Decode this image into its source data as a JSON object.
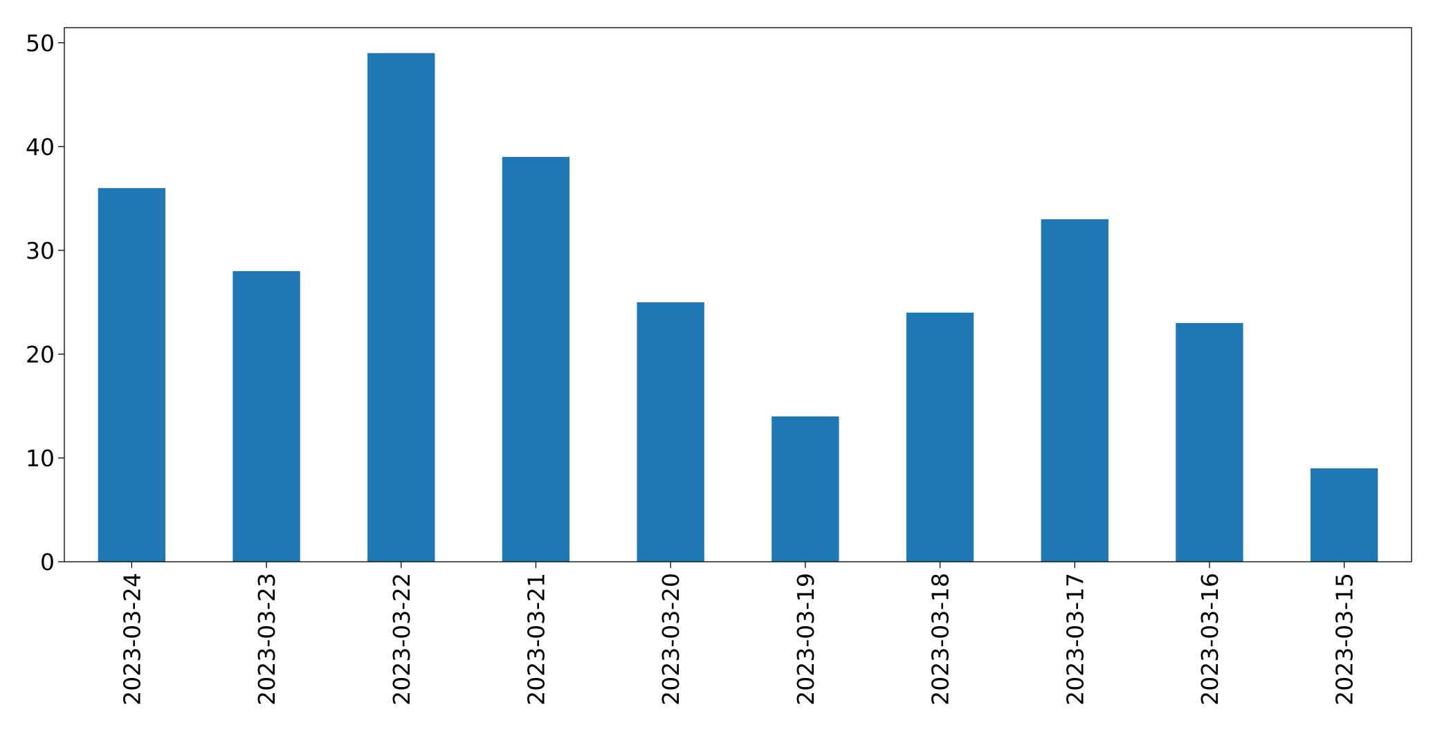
{
  "chart_data": {
    "type": "bar",
    "categories": [
      "2023-03-24",
      "2023-03-23",
      "2023-03-22",
      "2023-03-21",
      "2023-03-20",
      "2023-03-19",
      "2023-03-18",
      "2023-03-17",
      "2023-03-16",
      "2023-03-15"
    ],
    "values": [
      36,
      28,
      49,
      39,
      25,
      14,
      24,
      33,
      23,
      9
    ],
    "color": "#1f77b4",
    "ylim": [
      0,
      51.45
    ],
    "yticks": [
      0,
      10,
      20,
      30,
      40,
      50
    ],
    "grid": false
  }
}
